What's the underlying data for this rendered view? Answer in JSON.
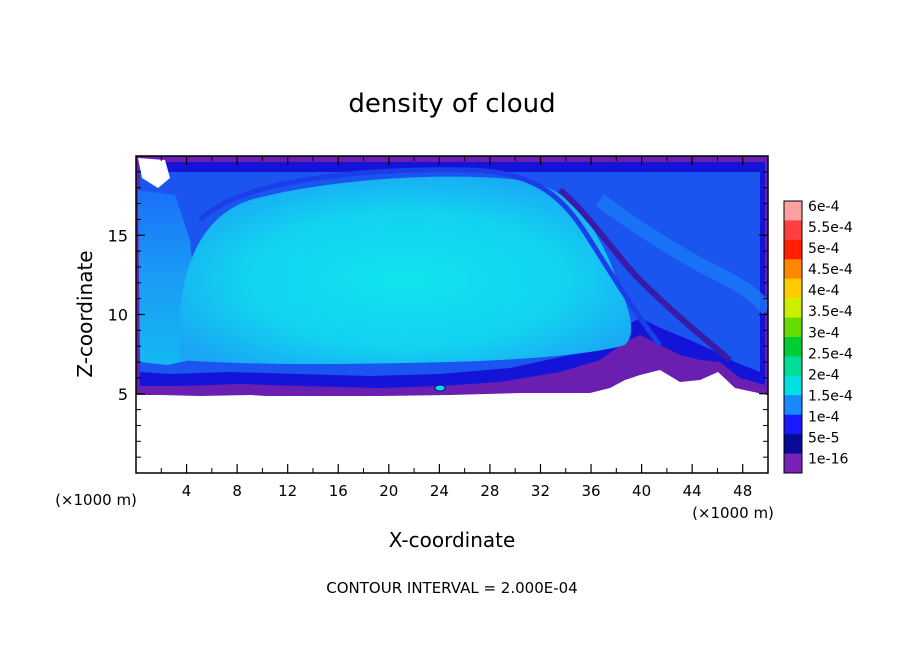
{
  "chart_data": {
    "type": "heatmap",
    "title": "density of cloud",
    "xlabel": "X-coordinate",
    "ylabel": "Z-coordinate",
    "x_unit_label": "(×1000 m)",
    "y_unit_label": "(×1000 m)",
    "xlim": [
      0,
      50
    ],
    "ylim": [
      0,
      20
    ],
    "x_ticks": [
      4,
      8,
      12,
      16,
      20,
      24,
      28,
      32,
      36,
      40,
      44,
      48
    ],
    "y_ticks": [
      5,
      10,
      15
    ],
    "footer": "CONTOUR INTERVAL = 2.000E-04",
    "colorbar": {
      "labels": [
        "6e-4",
        "5.5e-4",
        "5e-4",
        "4.5e-4",
        "4e-4",
        "3.5e-4",
        "3e-4",
        "2.5e-4",
        "2e-4",
        "1.5e-4",
        "1e-4",
        "5e-5",
        "1e-16"
      ],
      "colors": [
        "#ffa0a0",
        "#ff4040",
        "#ff2000",
        "#ff8800",
        "#ffcc00",
        "#ccee00",
        "#66dd00",
        "#00cc33",
        "#00dd99",
        "#00e0e0",
        "#1a88ff",
        "#1a1aff",
        "#0a0a99",
        "#7a22b8"
      ]
    },
    "cloud_base_z": 5,
    "cloud_top_z": 20
  }
}
